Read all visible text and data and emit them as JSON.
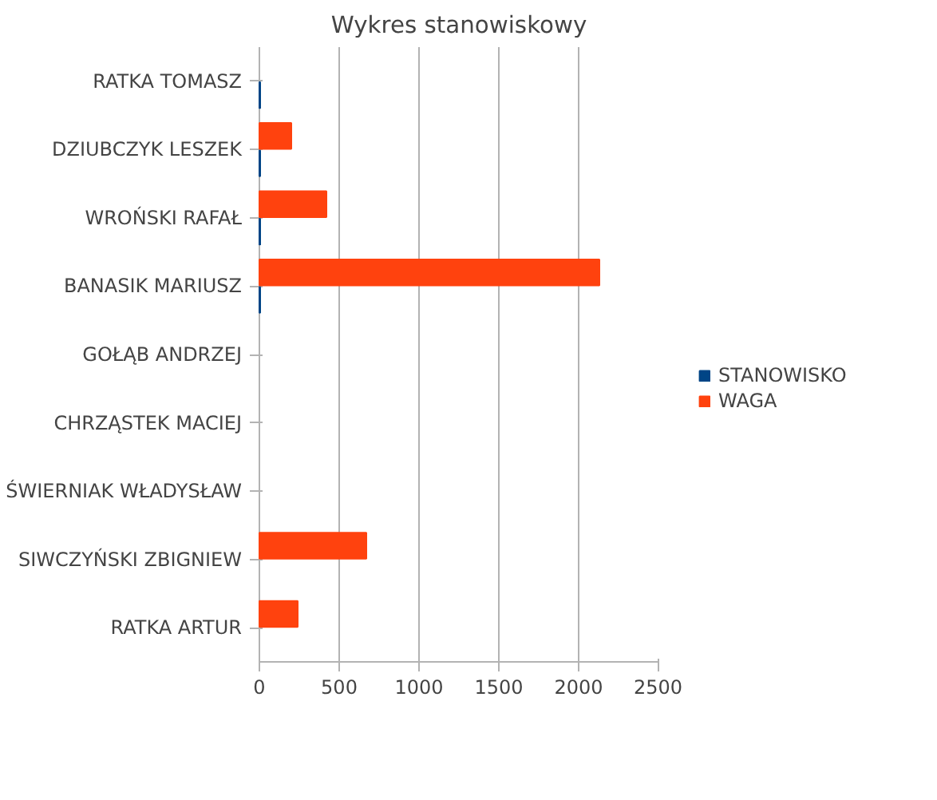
{
  "chart_data": {
    "type": "bar",
    "orientation": "horizontal",
    "title": "Wykres stanowiskowy",
    "categories": [
      "RATKA TOMASZ",
      "DZIUBCZYK LESZEK",
      "WROŃSKI RAFAŁ",
      "BANASIK MARIUSZ",
      "GOŁĄB ANDRZEJ",
      "CHRZĄSTEK MACIEJ",
      "ŚWIERNIAK WŁADYSŁAW",
      "SIWCZYŃSKI ZBIGNIEW",
      "RATKA ARTUR"
    ],
    "series": [
      {
        "name": "STANOWISKO",
        "color": "#004586",
        "values": [
          5,
          5,
          5,
          5,
          null,
          null,
          null,
          null,
          null
        ]
      },
      {
        "name": "WAGA",
        "color": "#ff420e",
        "values": [
          null,
          200,
          420,
          2130,
          null,
          null,
          null,
          670,
          240
        ]
      }
    ],
    "xlim": [
      0,
      2500
    ],
    "xticks": [
      0,
      500,
      1000,
      1500,
      2000,
      2500
    ],
    "grid": "x",
    "legend": "right"
  }
}
